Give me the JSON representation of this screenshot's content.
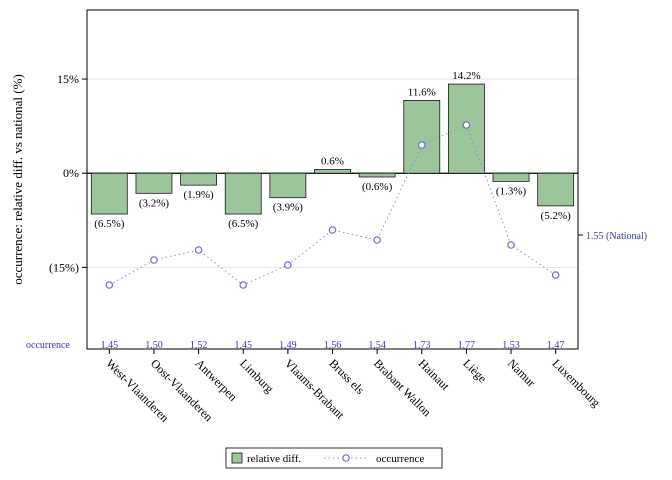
{
  "chart_data": {
    "type": "bar",
    "ylabel": "occurrence: relative diff. vs national (%)",
    "ylim": [
      -28,
      26
    ],
    "yticks": [
      {
        "value": 15,
        "label": "15%"
      },
      {
        "value": 0,
        "label": "0%"
      },
      {
        "value": -15,
        "label": "(15%)"
      }
    ],
    "categories": [
      "West-Vlaanderen",
      "Oost-Vlaanderen",
      "Antwerpen",
      "Limburg",
      "Vlaams-Brabant",
      "Bruss els",
      "Brabant Wallon",
      "Hainaut",
      "Liège",
      "Namur",
      "Luxembourg"
    ],
    "series": [
      {
        "name": "relative diff.",
        "values": [
          -6.5,
          -3.2,
          -1.9,
          -6.5,
          -3.9,
          0.6,
          -0.6,
          11.6,
          14.2,
          -1.3,
          -5.2
        ],
        "labels": [
          "(6.5%)",
          "(3.2%)",
          "(1.9%)",
          "(6.5%)",
          "(3.9%)",
          "0.6%",
          "(0.6%)",
          "11.6%",
          "14.2%",
          "(1.3%)",
          "(5.2%)"
        ],
        "color": "#9dc59c"
      },
      {
        "name": "occurrence",
        "values": [
          1.45,
          1.5,
          1.52,
          1.45,
          1.49,
          1.56,
          1.54,
          1.73,
          1.77,
          1.53,
          1.47
        ],
        "labels": [
          "1,45",
          "1,50",
          "1,52",
          "1,45",
          "1,49",
          "1,56",
          "1,54",
          "1,73",
          "1,77",
          "1,53",
          "1,47"
        ],
        "color": "#6a6ad0"
      }
    ],
    "row_label": "occurrence",
    "national_label": "1.55 (National)",
    "national_value": 1.55,
    "legend": "bottom",
    "grid": true
  }
}
